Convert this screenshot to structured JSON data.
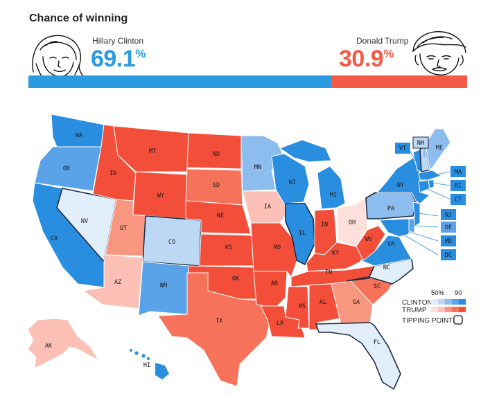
{
  "header": {
    "title": "Chance of winning"
  },
  "candidates": {
    "clinton": {
      "name": "Hillary Clinton",
      "pct": "69.1",
      "symbol": "%",
      "share": 0.691,
      "color": "#2a9be0"
    },
    "trump": {
      "name": "Donald Trump",
      "pct": "30.9",
      "symbol": "%",
      "share": 0.309,
      "color": "#f55a46"
    }
  },
  "legend": {
    "pct_low": "50%",
    "pct_high": "90",
    "clinton_label": "CLINTON",
    "trump_label": "TRUMP",
    "tipping_label": "TIPPING POINTS",
    "clinton_scale": [
      "#e3eefb",
      "#bcd8f4",
      "#8cbdee",
      "#5aa3e8",
      "#2a8ee0"
    ],
    "trump_scale": [
      "#fde0db",
      "#fcc0b6",
      "#f9967f",
      "#f6725a",
      "#f24e3a"
    ]
  },
  "states": {
    "WA": "WA",
    "OR": "OR",
    "CA": "CA",
    "NV": "NV",
    "ID": "ID",
    "MT": "MT",
    "WY": "WY",
    "UT": "UT",
    "AZ": "AZ",
    "CO": "CO",
    "NM": "NM",
    "ND": "ND",
    "SD": "SD",
    "NE": "NE",
    "KS": "KS",
    "OK": "OK",
    "TX": "TX",
    "MN": "MN",
    "IA": "IA",
    "MO": "MO",
    "AR": "AR",
    "LA": "LA",
    "WI": "WI",
    "IL": "IL",
    "MI": "MI",
    "IN": "IN",
    "OH": "OH",
    "KY": "KY",
    "TN": "TN",
    "MS": "MS",
    "AL": "AL",
    "GA": "GA",
    "FL": "FL",
    "SC": "SC",
    "NC": "NC",
    "VA": "VA",
    "WV": "WV",
    "PA": "PA",
    "NY": "NY",
    "VT": "VT",
    "NH": "NH",
    "ME": "ME",
    "MA": "MA",
    "RI": "RI",
    "CT": "CT",
    "NJ": "NJ",
    "DE": "DE",
    "MD": "MD",
    "DC": "DC",
    "AK": "AK",
    "HI": "HI"
  }
}
